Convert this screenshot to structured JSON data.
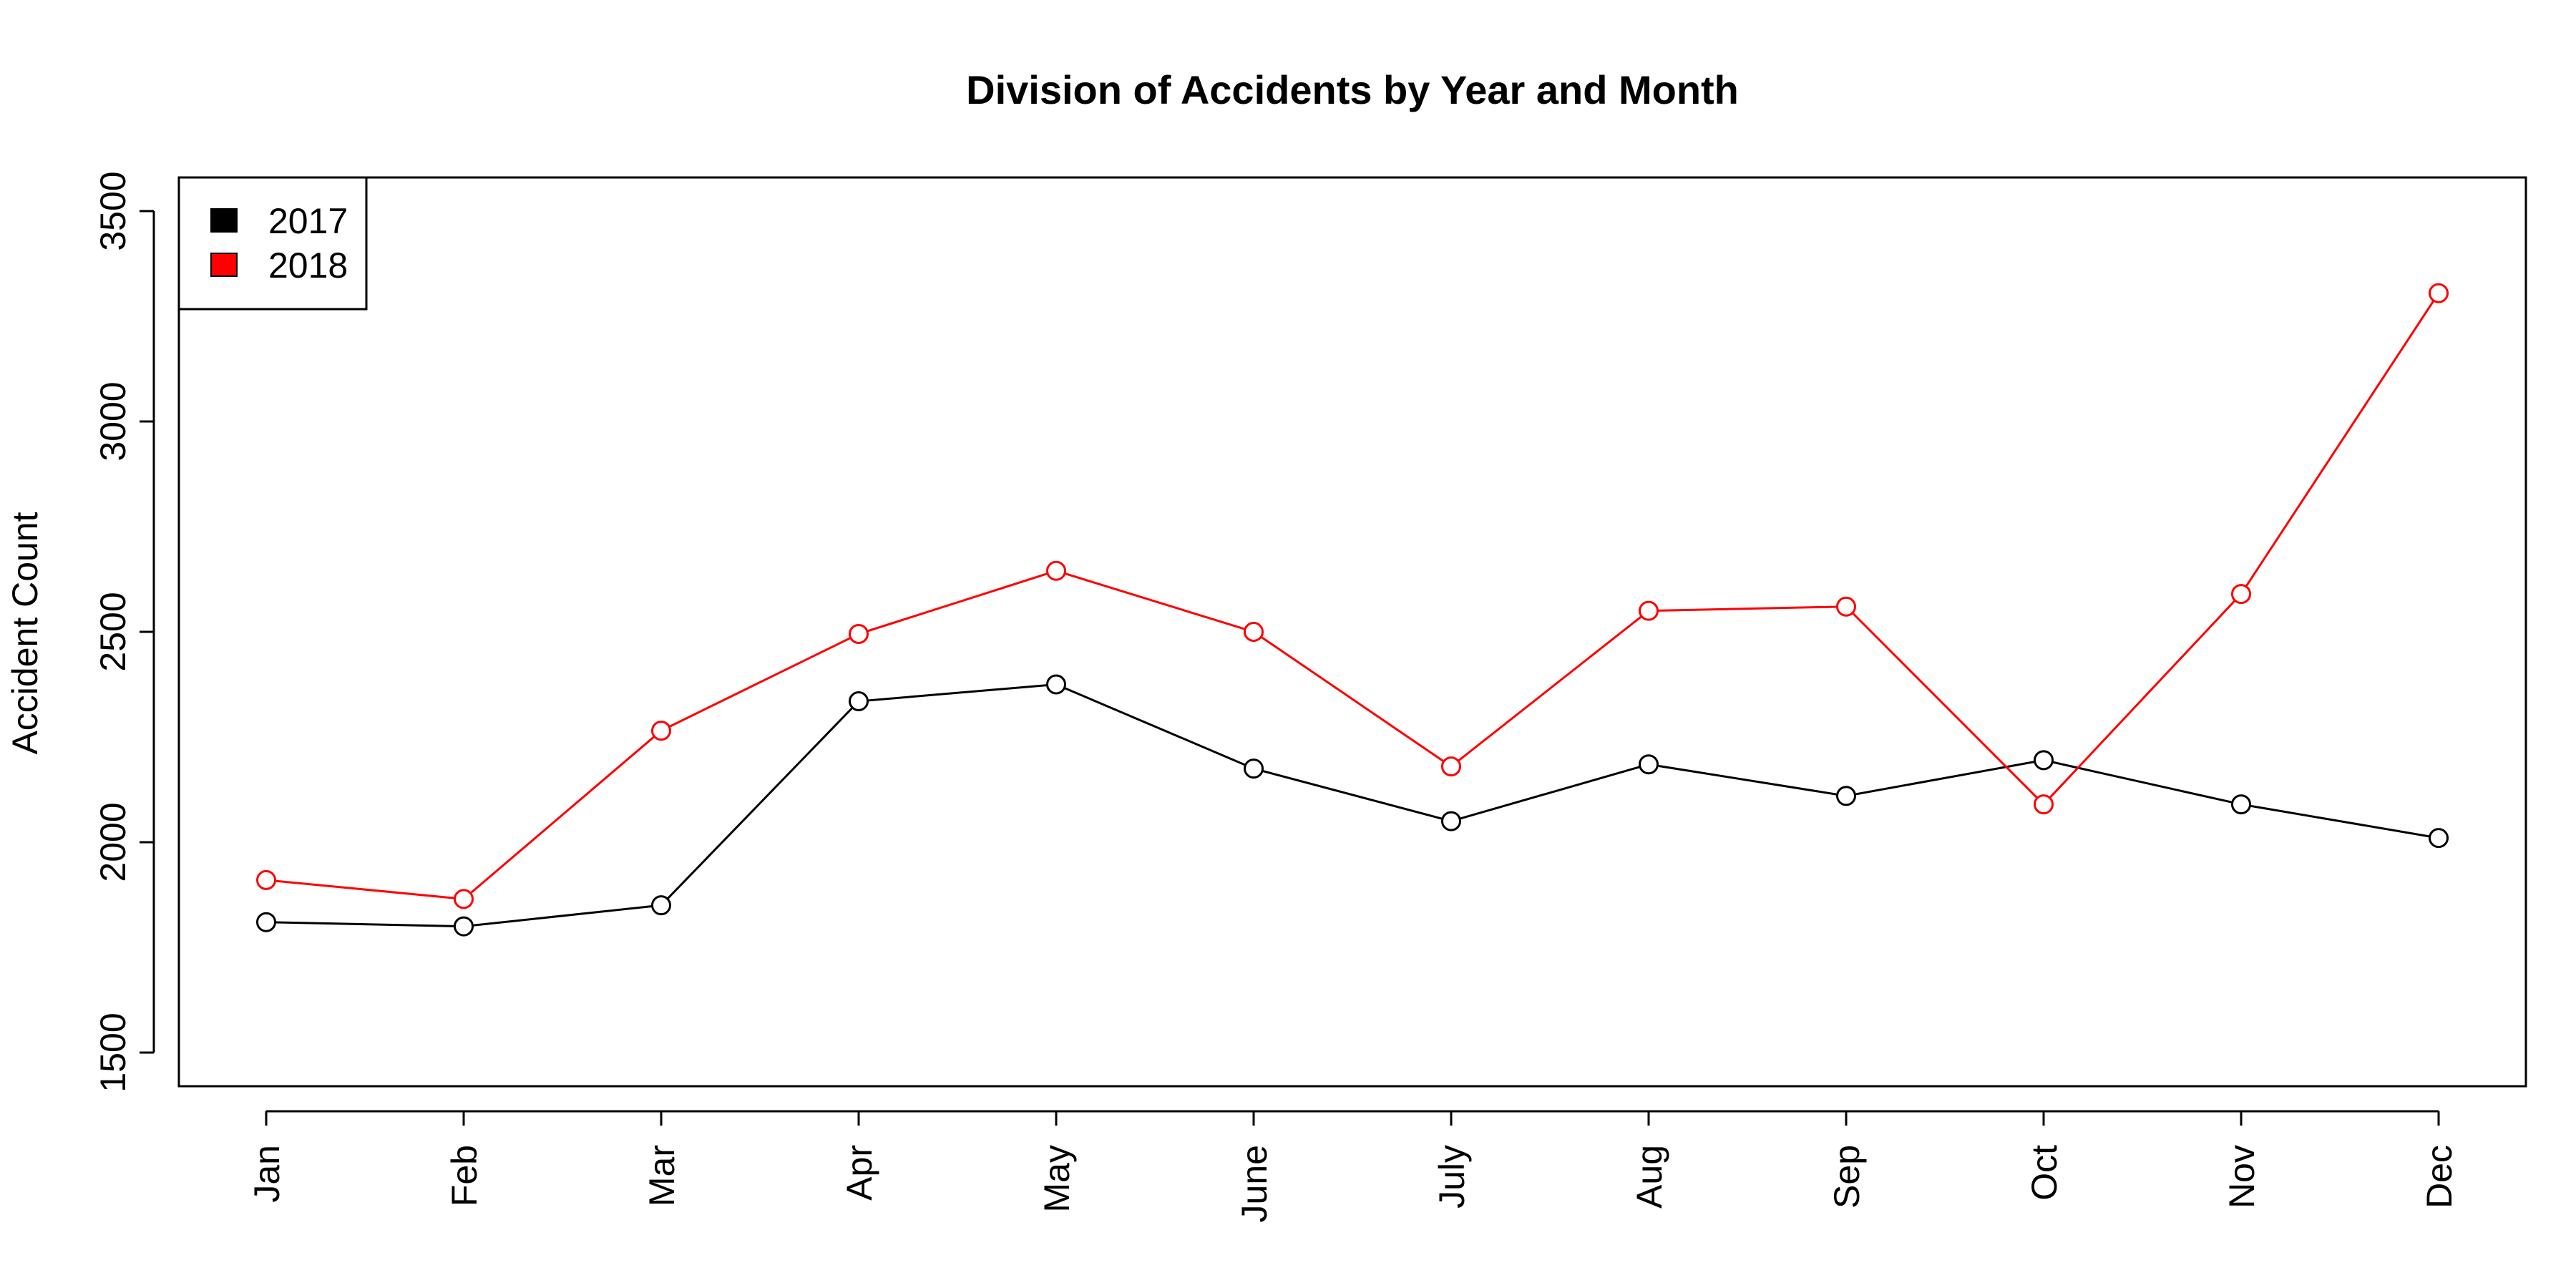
{
  "chart_data": {
    "type": "line",
    "title": "Division of Accidents by Year and Month",
    "xlabel": "",
    "ylabel": "Accident Count",
    "categories": [
      "Jan",
      "Feb",
      "Mar",
      "Apr",
      "May",
      "June",
      "July",
      "Aug",
      "Sep",
      "Oct",
      "Nov",
      "Dec"
    ],
    "ylim": [
      1420,
      3580
    ],
    "yticks": [
      1500,
      2000,
      2500,
      3000,
      3500
    ],
    "ytick_labels": [
      "1500",
      "2000",
      "2500",
      "3000",
      "3500"
    ],
    "grid": false,
    "legend_position": "top-left",
    "series": [
      {
        "name": "2017",
        "color": "#000000",
        "marker": "open-circle",
        "values": [
          1810,
          1800,
          1850,
          2335,
          2375,
          2175,
          2050,
          2185,
          2110,
          2195,
          2090,
          2010
        ]
      },
      {
        "name": "2018",
        "color": "#ff0000",
        "marker": "open-circle",
        "values": [
          1910,
          1865,
          2265,
          2495,
          2645,
          2500,
          2180,
          2550,
          2560,
          2090,
          2590,
          3305
        ]
      }
    ]
  }
}
